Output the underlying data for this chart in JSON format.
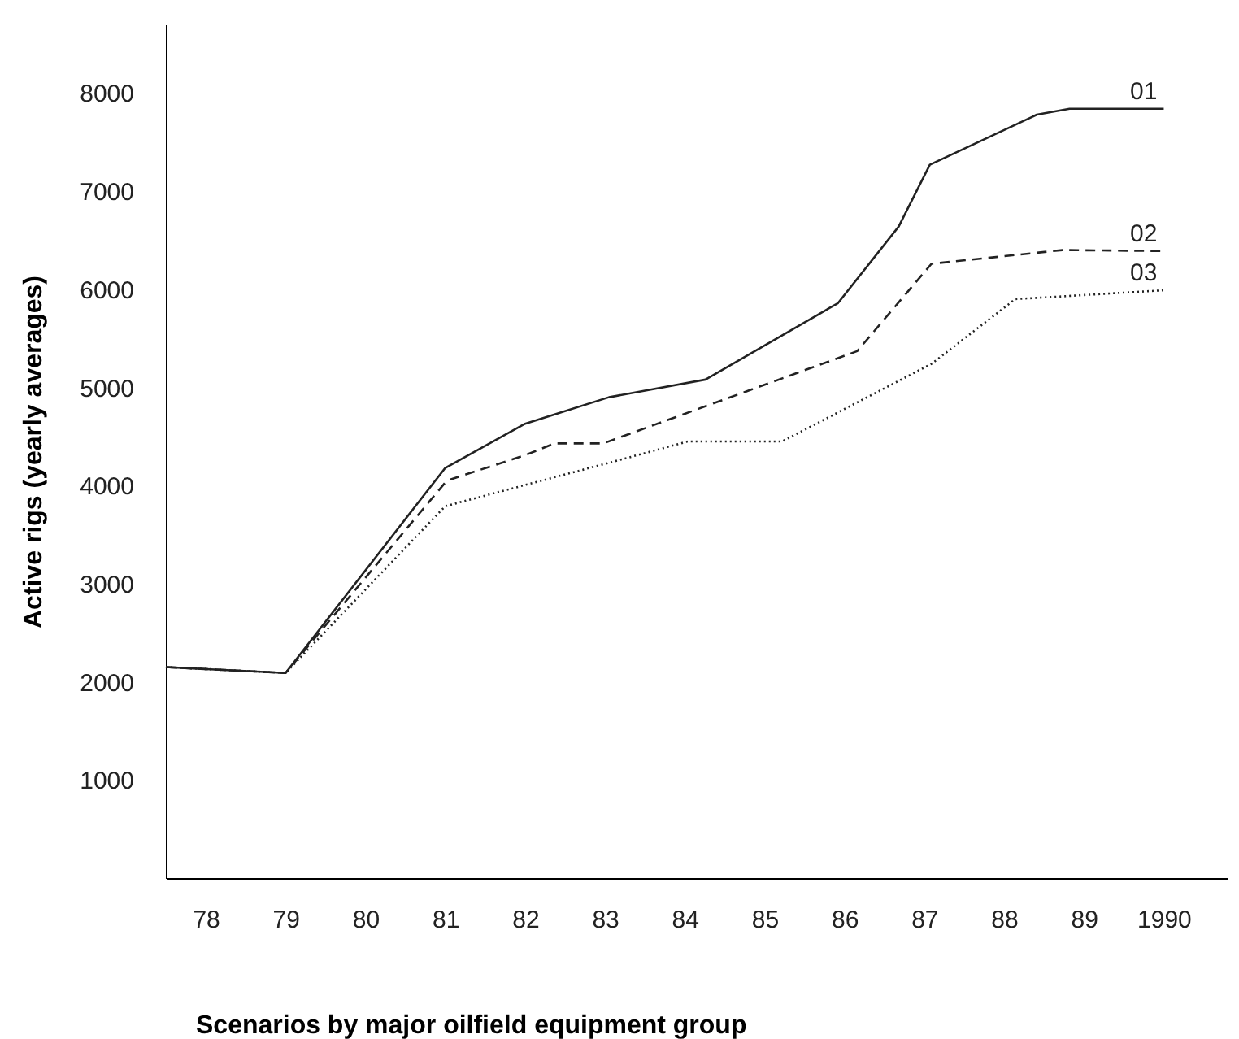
{
  "chart_data": {
    "type": "line",
    "xlabel": "Scenarios by major oilfield equipment group",
    "ylabel": "Active rigs (yearly averages)",
    "xlim": [
      1977.5,
      1990.8
    ],
    "xticks": [
      {
        "value": 1978,
        "label": "78"
      },
      {
        "value": 1979,
        "label": "79"
      },
      {
        "value": 1980,
        "label": "80"
      },
      {
        "value": 1981,
        "label": "81"
      },
      {
        "value": 1982,
        "label": "82"
      },
      {
        "value": 1983,
        "label": "83"
      },
      {
        "value": 1984,
        "label": "84"
      },
      {
        "value": 1985,
        "label": "85"
      },
      {
        "value": 1986,
        "label": "86"
      },
      {
        "value": 1987,
        "label": "87"
      },
      {
        "value": 1988,
        "label": "88"
      },
      {
        "value": 1989,
        "label": "89"
      },
      1990
    ],
    "ylim": [
      0,
      8700
    ],
    "yticks": [
      1000,
      2000,
      3000,
      4000,
      5000,
      6000,
      7000,
      8000
    ],
    "grid": false,
    "series": [
      {
        "name": "01",
        "color": "#222222",
        "line_style": "solid",
        "x": [
          1977.5,
          1979,
          1981,
          1982,
          1983.05,
          1984.26,
          1985.92,
          1986.68,
          1987.07,
          1988.41,
          1988.82,
          1990
        ],
        "values": [
          2150,
          2090,
          4180,
          4630,
          4900,
          5080,
          5860,
          6640,
          7270,
          7780,
          7840,
          7840
        ]
      },
      {
        "name": "02",
        "color": "#222222",
        "line_style": "dashed",
        "x": [
          1977.5,
          1979,
          1981.02,
          1982,
          1982.37,
          1982.98,
          1986.16,
          1987.09,
          1988.73,
          1990
        ],
        "values": [
          2150,
          2090,
          4050,
          4310,
          4430,
          4430,
          5370,
          6260,
          6400,
          6390
        ]
      },
      {
        "name": "03",
        "color": "#222222",
        "line_style": "dotted",
        "x": [
          1977.5,
          1979,
          1981,
          1983.18,
          1984.04,
          1985.22,
          1987.09,
          1988.14,
          1990
        ],
        "values": [
          2150,
          2090,
          3790,
          4260,
          4450,
          4450,
          5240,
          5900,
          5990
        ]
      }
    ]
  }
}
